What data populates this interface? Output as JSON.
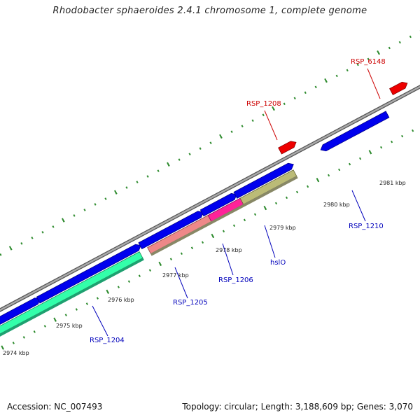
{
  "title": "Rhodobacter sphaeroides 2.4.1 chromosome 1, complete genome",
  "accession": "Accession: NC_007493",
  "summary": "Topology: circular; Length: 3,188,609 bp; Genes: 3,070",
  "colors": {
    "backbone": "#888888",
    "tick": "#2e8b2e",
    "forward_gene": "#0000ee",
    "reverse_gene": "#ee0000",
    "label_blue": "#0000bb",
    "label_red": "#cc0000"
  },
  "kbp_labels": [
    {
      "id": "kbp-2974",
      "text": "2974 kbp"
    },
    {
      "id": "kbp-2975",
      "text": "2975 kbp"
    },
    {
      "id": "kbp-2976",
      "text": "2976 kbp"
    },
    {
      "id": "kbp-2977",
      "text": "2977 kbp"
    },
    {
      "id": "kbp-2978",
      "text": "2978 kbp"
    },
    {
      "id": "kbp-2979",
      "text": "2979 kbp"
    },
    {
      "id": "kbp-2980",
      "text": "2980 kbp"
    },
    {
      "id": "kbp-2981",
      "text": "2981 kbp"
    }
  ],
  "gene_labels": [
    {
      "id": "RSP_1204",
      "text": "RSP_1204",
      "color": "#0000bb"
    },
    {
      "id": "RSP_1205",
      "text": "RSP_1205",
      "color": "#0000bb"
    },
    {
      "id": "RSP_1206",
      "text": "RSP_1206",
      "color": "#0000bb"
    },
    {
      "id": "hslO",
      "text": "hslO",
      "color": "#0000bb"
    },
    {
      "id": "RSP_1210",
      "text": "RSP_1210",
      "color": "#0000bb"
    },
    {
      "id": "RSP_1208",
      "text": "RSP_1208",
      "color": "#cc0000"
    },
    {
      "id": "RSP_6148",
      "text": "RSP_6148",
      "color": "#cc0000"
    }
  ]
}
